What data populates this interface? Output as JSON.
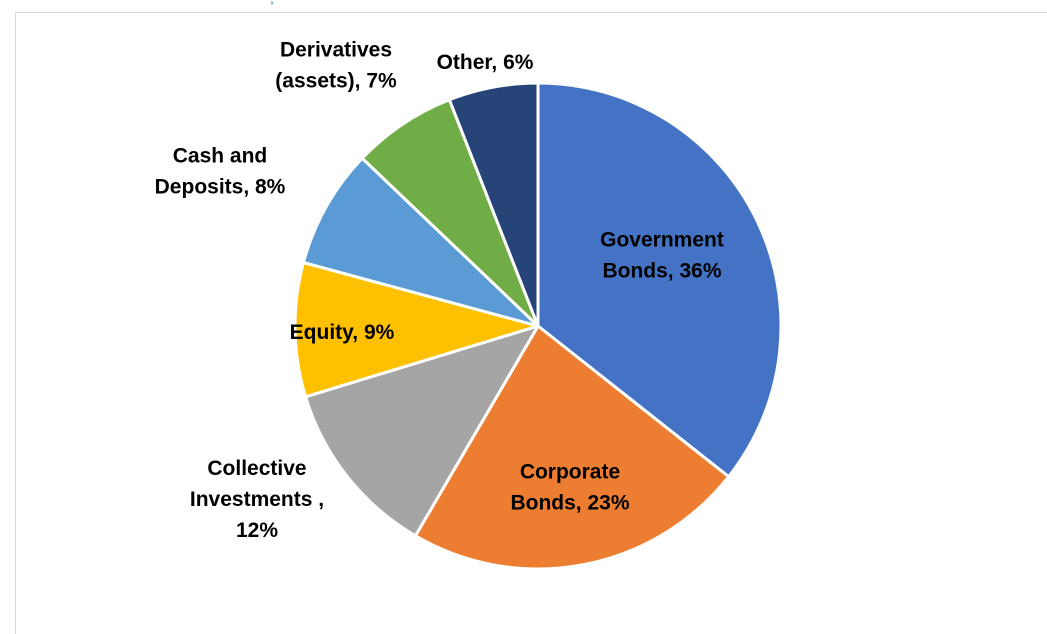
{
  "chart_data": {
    "type": "pie",
    "title": "",
    "slices": [
      {
        "name": "Government Bonds",
        "value": 36,
        "label": [
          "Government",
          "Bonds, 36%"
        ],
        "color": "#4472c4"
      },
      {
        "name": "Corporate Bonds",
        "value": 23,
        "label": [
          "Corporate",
          "Bonds, 23%"
        ],
        "color": "#ed7d31"
      },
      {
        "name": "Collective Investments",
        "value": 12,
        "label": [
          "Collective",
          "Investments ,",
          "12%"
        ],
        "color": "#a5a5a5"
      },
      {
        "name": "Equity",
        "value": 9,
        "label": [
          "Equity, 9%"
        ],
        "color": "#ffc000"
      },
      {
        "name": "Cash and Deposits",
        "value": 8,
        "label": [
          "Cash and",
          "Deposits, 8%"
        ],
        "color": "#5b9bd5"
      },
      {
        "name": "Derivatives (assets)",
        "value": 7,
        "label": [
          "Derivatives",
          "(assets), 7%"
        ],
        "color": "#70ad47"
      },
      {
        "name": "Other",
        "value": 6,
        "label": [
          "Other, 6%"
        ],
        "color": "#264478"
      }
    ],
    "start_angle_deg": 0,
    "direction": "clockwise",
    "legend": "none",
    "data_labels": "category name and percentage"
  }
}
